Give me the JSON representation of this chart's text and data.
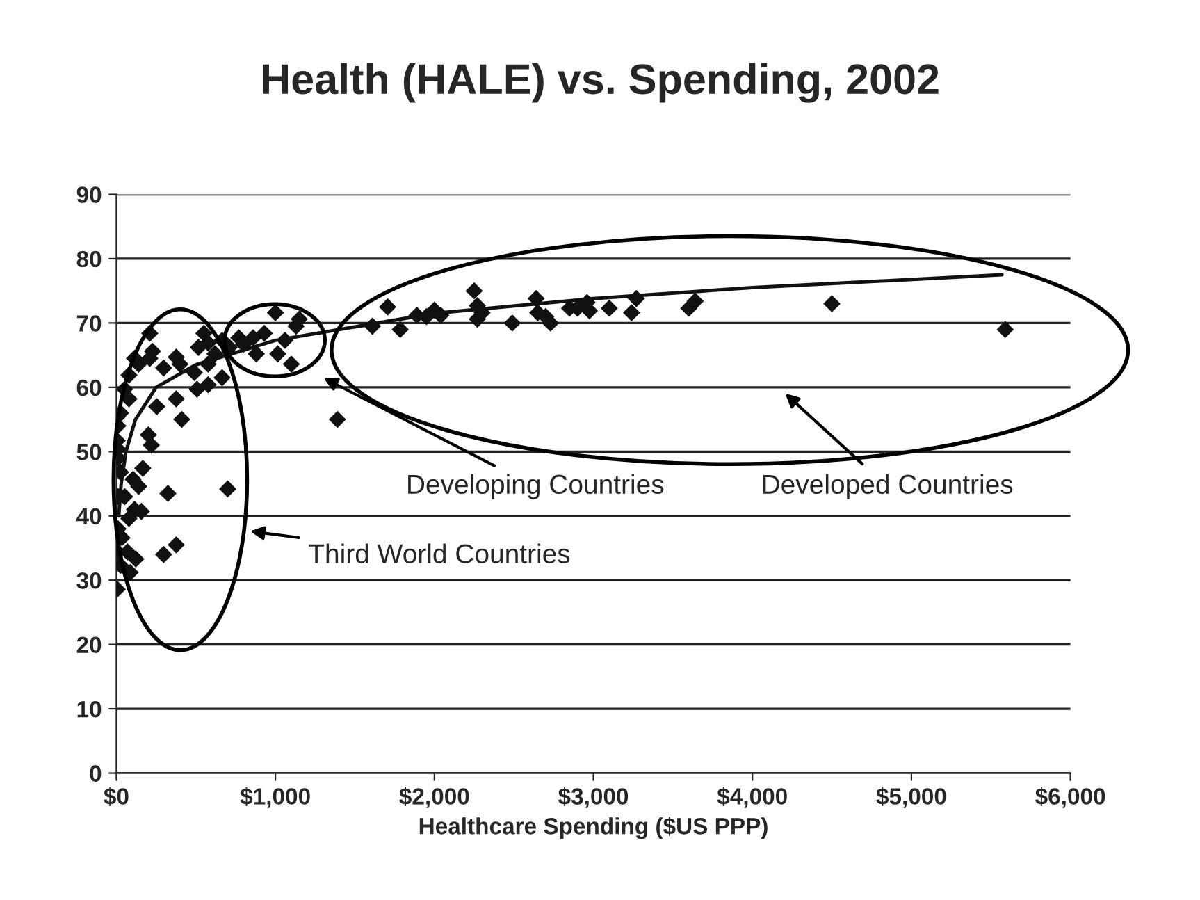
{
  "chart_data": {
    "type": "scatter",
    "title": "Health (HALE) vs. Spending, 2002",
    "xlabel": "Healthcare Spending ($US PPP)",
    "xlim": [
      0,
      6000
    ],
    "xticks": [
      {
        "value": 0,
        "label": "$0"
      },
      {
        "value": 1000,
        "label": "$1,000"
      },
      {
        "value": 2000,
        "label": "$2,000"
      },
      {
        "value": 3000,
        "label": "$3,000"
      },
      {
        "value": 4000,
        "label": "$4,000"
      },
      {
        "value": 5000,
        "label": "$5,000"
      },
      {
        "value": 6000,
        "label": "$6,000"
      }
    ],
    "ylim": [
      0,
      90
    ],
    "yticks": [
      0,
      10,
      20,
      30,
      40,
      50,
      60,
      70,
      80,
      90
    ],
    "grid": "y",
    "legend": false,
    "annotations": [
      "Developing Countries",
      "Developed Countries",
      "Third World Countries"
    ],
    "series": [
      {
        "marker": "diamond",
        "color": "#111111",
        "x": [
          5,
          87,
          122,
          297,
          376,
          324,
          700,
          411,
          1390,
          166,
          219,
          140,
          79,
          35,
          114,
          52,
          26,
          9,
          9,
          26,
          79,
          201,
          254,
          376,
          507,
          577,
          665,
          114,
          227,
          376,
          516,
          577,
          79,
          52,
          5,
          5,
          10,
          10,
          10,
          5,
          70,
          26,
          157,
          105,
          210,
          140,
          297,
          400,
          490,
          577,
          620,
          710,
          800,
          880,
          930,
          550,
          210,
          1000,
          1060,
          1100,
          1130,
          1150,
          1015,
          860,
          770,
          665,
          1610,
          1706,
          1785,
          1890,
          1950,
          2000,
          2040,
          2250,
          2270,
          2300,
          2270,
          2490,
          2640,
          2650,
          2700,
          2730,
          2850,
          2900,
          2960,
          2975,
          3100,
          3240,
          3270,
          3600,
          3640,
          4500,
          5590
        ],
        "values": [
          28.6,
          31.2,
          33.3,
          34,
          35.5,
          43.5,
          44.2,
          55,
          55,
          47.4,
          51,
          44.6,
          39.6,
          36.6,
          41,
          43,
          46.8,
          50.4,
          54,
          56,
          58.2,
          52.6,
          57,
          58.2,
          59.7,
          60.4,
          61.5,
          64.5,
          65.6,
          64.7,
          66.2,
          66.9,
          61.9,
          59.7,
          55.4,
          51.7,
          49,
          43,
          38,
          34.4,
          34.4,
          32.3,
          40.7,
          45.7,
          64.5,
          63.6,
          63,
          63.6,
          62.3,
          63.6,
          65.2,
          66.2,
          66.7,
          65.2,
          68.4,
          68.4,
          68.4,
          71.6,
          67.3,
          63.6,
          69.5,
          70.6,
          65.2,
          67.7,
          67.7,
          67.3,
          69.5,
          72.5,
          69,
          71.2,
          71,
          72,
          71.2,
          75,
          72.7,
          71.6,
          70.6,
          70,
          73.8,
          71.6,
          71,
          70,
          72.3,
          72.3,
          73.2,
          71.9,
          72.3,
          71.6,
          73.8,
          72.3,
          73.4,
          73,
          69
        ]
      },
      {
        "type": "line",
        "marker": "none",
        "color": "#111111",
        "x": [
          15,
          30,
          60,
          120,
          250,
          500,
          1000,
          2000,
          3000,
          4000,
          5570
        ],
        "values": [
          40,
          45,
          50,
          55,
          60,
          63.5,
          67.3,
          71.5,
          73.8,
          75.5,
          77.5
        ]
      }
    ]
  }
}
